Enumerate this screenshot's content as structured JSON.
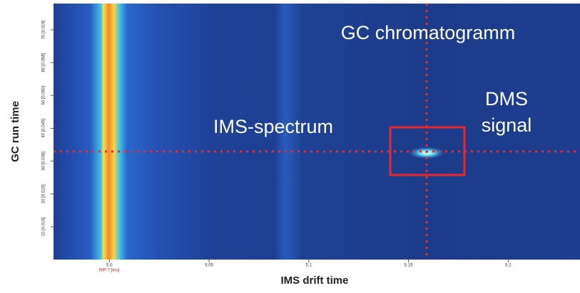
{
  "chart_data": {
    "type": "heatmap",
    "x_label": "IMS drift time",
    "y_label": "GC run time",
    "xlim": [
      4.972,
      5.236
    ],
    "xticks": [
      {
        "value": 5.0,
        "label": "5.0"
      },
      5.05,
      5.1,
      5.15,
      5.2
    ],
    "ylim": [
      0,
      78
    ],
    "yticks": [
      {
        "value": 10,
        "label": "10 [0.016]"
      },
      {
        "value": 20,
        "label": "20 [0.024]"
      },
      {
        "value": 30,
        "label": "30 [0.038]"
      },
      {
        "value": 40,
        "label": "40 [0.045]"
      },
      {
        "value": 50,
        "label": "50 [0.050]"
      },
      {
        "value": 60,
        "label": "60 [0.058]"
      },
      {
        "value": 70,
        "label": "70 [0.018]"
      }
    ],
    "rip_label": "RIP 7 [ms]",
    "annotations": {
      "gc": "GC chromatogramm",
      "ims": "IMS-spectrum",
      "dms_1": "DMS",
      "dms_2": "signal"
    }
  }
}
